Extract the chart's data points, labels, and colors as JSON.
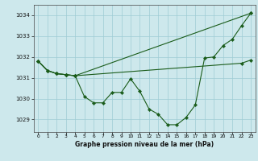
{
  "title": "Graphe pression niveau de la mer (hPa)",
  "bg_color": "#cde8ec",
  "grid_color": "#9fccd4",
  "line_color": "#1a5c1a",
  "marker_color": "#1a5c1a",
  "xlim": [
    -0.5,
    23.5
  ],
  "ylim": [
    1028.4,
    1034.5
  ],
  "yticks": [
    1029,
    1030,
    1031,
    1032,
    1033,
    1034
  ],
  "xticks": [
    0,
    1,
    2,
    3,
    4,
    5,
    6,
    7,
    8,
    9,
    10,
    11,
    12,
    13,
    14,
    15,
    16,
    17,
    18,
    19,
    20,
    21,
    22,
    23
  ],
  "series1_x": [
    0,
    1,
    2,
    3,
    4,
    23
  ],
  "series1_y": [
    1031.8,
    1031.35,
    1031.2,
    1031.15,
    1031.1,
    1034.1
  ],
  "series2_x": [
    0,
    1,
    2,
    3,
    4,
    22,
    23
  ],
  "series2_y": [
    1031.8,
    1031.35,
    1031.2,
    1031.15,
    1031.1,
    1031.7,
    1031.85
  ],
  "series3_x": [
    0,
    1,
    2,
    3,
    4,
    5,
    6,
    7,
    8,
    9,
    10,
    11,
    12,
    13,
    14,
    15,
    16,
    17,
    18,
    19,
    20,
    21,
    22,
    23
  ],
  "series3_y": [
    1031.8,
    1031.35,
    1031.2,
    1031.15,
    1031.1,
    1030.1,
    1029.8,
    1029.8,
    1030.3,
    1030.3,
    1030.95,
    1030.35,
    1029.5,
    1029.25,
    1028.75,
    1028.75,
    1029.1,
    1029.7,
    1031.95,
    1032.0,
    1032.55,
    1032.85,
    1033.5,
    1034.1
  ]
}
